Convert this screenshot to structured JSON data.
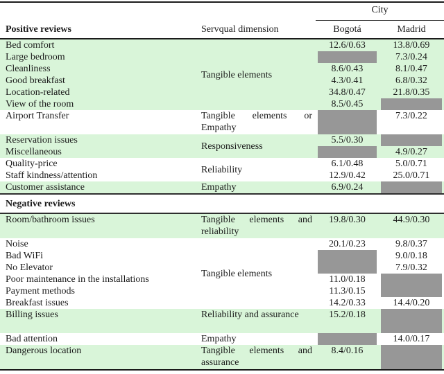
{
  "colors": {
    "row_highlight": "#d9f5d9",
    "missing_cell": "#979797",
    "rule": "#1b1b1b"
  },
  "header": {
    "positive_title": "Positive reviews",
    "dimension_label": "Servqual dimension",
    "city_label": "City",
    "cities": [
      "Bogotá",
      "Madrid"
    ]
  },
  "negative_title": "Negative reviews",
  "positive_blocks": [
    {
      "highlight": true,
      "dimension": "Tangible elements",
      "rows": [
        {
          "label": "Bed comfort",
          "bogota": "12.6/0.63",
          "madrid": "13.8/0.69"
        },
        {
          "label": "Large bedroom",
          "bogota": null,
          "madrid": "7.3/0.24"
        },
        {
          "label": "Cleanliness",
          "bogota": "8.6/0.43",
          "madrid": "8.1/0.47"
        },
        {
          "label": "Good breakfast",
          "bogota": "4.3/0.41",
          "madrid": "6.8/0.32"
        },
        {
          "label": "Location-related",
          "bogota": "34.8/0.47",
          "madrid": "21.8/0.35"
        },
        {
          "label": "View of the room",
          "bogota": "8.5/0.45",
          "madrid": null
        }
      ]
    },
    {
      "highlight": false,
      "two_line": true,
      "dimension": "Tangible elements or Empathy",
      "rows": [
        {
          "label": "Airport Transfer",
          "bogota": null,
          "madrid": "7.3/0.22"
        }
      ]
    },
    {
      "highlight": true,
      "dimension": "Responsiveness",
      "rows": [
        {
          "label": "Reservation issues",
          "bogota": "5.5/0.30",
          "madrid": null
        },
        {
          "label": "Miscellaneous",
          "bogota": null,
          "madrid": "4.9/0.27"
        }
      ]
    },
    {
      "highlight": false,
      "dimension": "Reliability",
      "rows": [
        {
          "label": "Quality-price",
          "bogota": "6.1/0.48",
          "madrid": "5.0/0.71"
        },
        {
          "label": "Staff kindness/attention",
          "bogota": "12.9/0.42",
          "madrid": "25.0/0.71"
        }
      ]
    },
    {
      "highlight": true,
      "dimension": "Empathy",
      "rows": [
        {
          "label": "Customer assistance",
          "bogota": "6.9/0.24",
          "madrid": null
        }
      ]
    }
  ],
  "negative_blocks": [
    {
      "highlight": true,
      "two_line": true,
      "dimension": "Tangible elements and reliability",
      "rows": [
        {
          "label": "Room/bathroom issues",
          "bogota": "19.8/0.30",
          "madrid": "44.9/0.30"
        }
      ]
    },
    {
      "highlight": false,
      "dimension": "Tangible elements",
      "rows": [
        {
          "label": "Noise",
          "bogota": "20.1/0.23",
          "madrid": "9.8/0.37"
        },
        {
          "label": "Bad WiFi",
          "bogota": null,
          "madrid": "9.0/0.18"
        },
        {
          "label": "No Elevator",
          "bogota": null,
          "madrid": "7.9/0.32"
        },
        {
          "label": "Poor maintenance in the installations",
          "bogota": "11.0/0.18",
          "madrid": null
        },
        {
          "label": "Payment methods",
          "bogota": "11.3/0.15",
          "madrid": null
        },
        {
          "label": "Breakfast issues",
          "bogota": "14.2/0.33",
          "madrid": "14.4/0.20"
        }
      ]
    },
    {
      "highlight": true,
      "two_line": true,
      "dimension": "Reliability and assur­ance",
      "rows": [
        {
          "label": "Billing issues",
          "bogota": "15.2/0.18",
          "madrid": null
        }
      ]
    },
    {
      "highlight": false,
      "dimension": "Empathy",
      "rows": [
        {
          "label": "Bad attention",
          "bogota": null,
          "madrid": "14.0/0.17"
        }
      ]
    },
    {
      "highlight": true,
      "two_line": true,
      "dimension": "Tangible elements and assurance",
      "rows": [
        {
          "label": "Dangerous location",
          "bogota": "8.4/0.16",
          "madrid": null
        }
      ]
    }
  ]
}
